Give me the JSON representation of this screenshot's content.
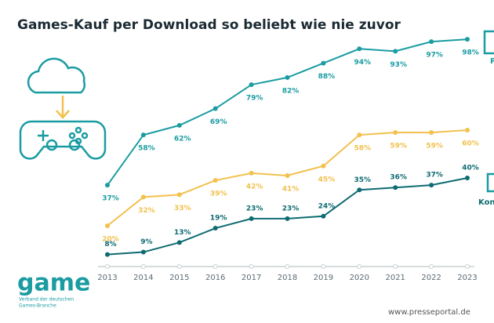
{
  "chart_data": {
    "type": "line",
    "title": "Games-Kauf per Download so beliebt wie nie zuvor",
    "categories": [
      "2013",
      "2014",
      "2015",
      "2016",
      "2017",
      "2018",
      "2019",
      "2020",
      "2021",
      "2022",
      "2023"
    ],
    "ylim": [
      0,
      100
    ],
    "series": [
      {
        "name": "P",
        "color": "#1a9ca2",
        "values": [
          37,
          58,
          62,
          69,
          79,
          82,
          88,
          94,
          93,
          97,
          98
        ],
        "value_labels": [
          "37%",
          "58%",
          "62%",
          "69%",
          "79%",
          "82%",
          "88%",
          "94%",
          "93%",
          "97%",
          "98%"
        ]
      },
      {
        "color": "#f2c14e",
        "values": [
          20,
          32,
          33,
          39,
          42,
          41,
          45,
          58,
          59,
          59,
          60
        ],
        "value_labels": [
          "20%",
          "32%",
          "33%",
          "39%",
          "42%",
          "41%",
          "45%",
          "58%",
          "59%",
          "59%",
          "60%"
        ]
      },
      {
        "name": "Kons",
        "color": "#0e6b72",
        "values": [
          8,
          9,
          13,
          19,
          23,
          23,
          24,
          35,
          36,
          37,
          40
        ],
        "value_labels": [
          "8%",
          "9%",
          "13%",
          "19%",
          "23%",
          "23%",
          "24%",
          "35%",
          "36%",
          "37%",
          "40%"
        ]
      }
    ]
  },
  "logo": {
    "name": "game",
    "subtitle_line1": "Verband der deutschen",
    "subtitle_line2": "Games-Branche"
  },
  "footer": "www.presseportal.de"
}
